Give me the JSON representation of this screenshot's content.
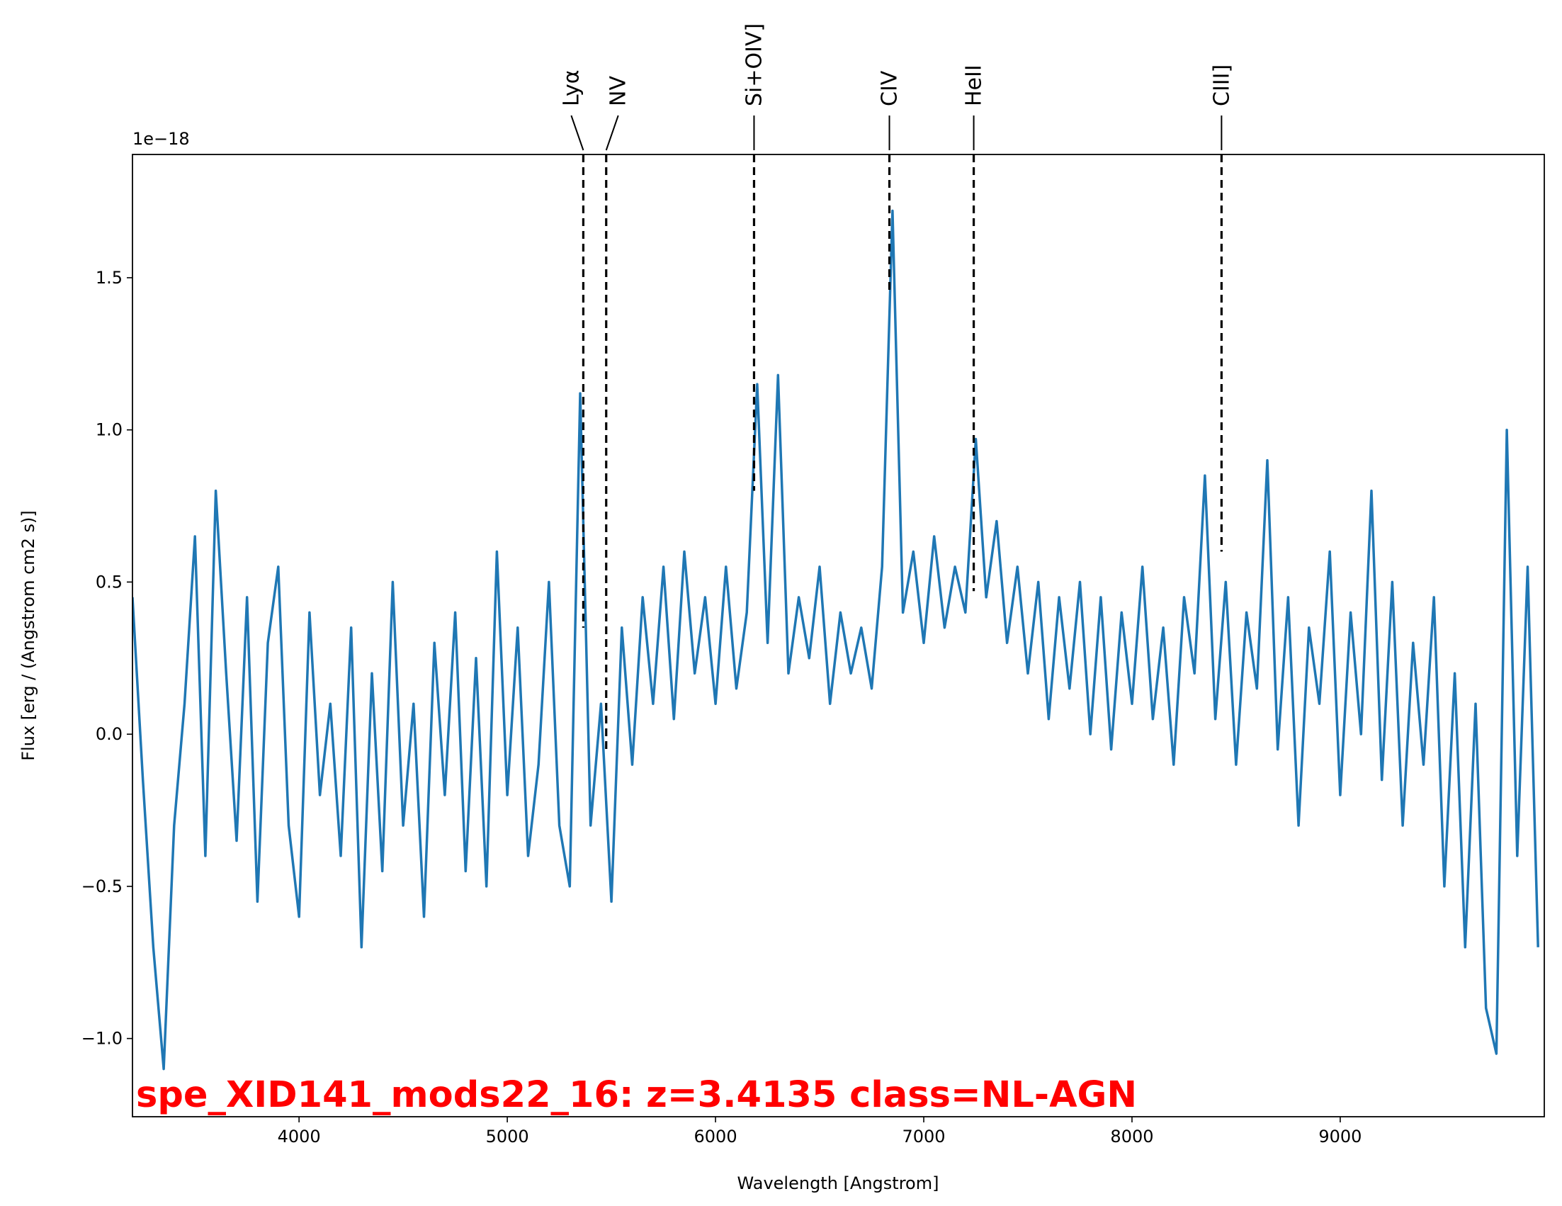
{
  "chart_data": {
    "type": "line",
    "xlabel": "Wavelength [Angstrom]",
    "ylabel": "Flux [erg / (Angstrom cm2 s)]",
    "y_offset_label": "1e−18",
    "annotation": "spe_XID141_mods22_16: z=3.4135 class=NL-AGN",
    "color": "#1f77b4",
    "x": [
      3200,
      3250,
      3300,
      3350,
      3400,
      3450,
      3500,
      3550,
      3600,
      3650,
      3700,
      3750,
      3800,
      3850,
      3900,
      3950,
      4000,
      4050,
      4100,
      4150,
      4200,
      4250,
      4300,
      4350,
      4400,
      4450,
      4500,
      4550,
      4600,
      4650,
      4700,
      4750,
      4800,
      4850,
      4900,
      4950,
      5000,
      5050,
      5100,
      5150,
      5200,
      5250,
      5300,
      5350,
      5400,
      5450,
      5500,
      5550,
      5600,
      5650,
      5700,
      5750,
      5800,
      5850,
      5900,
      5950,
      6000,
      6050,
      6100,
      6150,
      6200,
      6250,
      6300,
      6350,
      6400,
      6450,
      6500,
      6550,
      6600,
      6650,
      6700,
      6750,
      6800,
      6850,
      6900,
      6950,
      7000,
      7050,
      7100,
      7150,
      7200,
      7250,
      7300,
      7350,
      7400,
      7450,
      7500,
      7550,
      7600,
      7650,
      7700,
      7750,
      7800,
      7850,
      7900,
      7950,
      8000,
      8050,
      8100,
      8150,
      8200,
      8250,
      8300,
      8350,
      8400,
      8450,
      8500,
      8550,
      8600,
      8650,
      8700,
      8750,
      8800,
      8850,
      8900,
      8950,
      9000,
      9050,
      9100,
      9150,
      9200,
      9250,
      9300,
      9350,
      9400,
      9450,
      9500,
      9550,
      9600,
      9650,
      9700,
      9750,
      9800,
      9850,
      9900,
      9950
    ],
    "values": [
      0.45,
      -0.15,
      -0.7,
      -1.1,
      -0.3,
      0.1,
      0.65,
      -0.4,
      0.8,
      0.2,
      -0.35,
      0.45,
      -0.55,
      0.3,
      0.55,
      -0.3,
      -0.6,
      0.4,
      -0.2,
      0.1,
      -0.4,
      0.35,
      -0.7,
      0.2,
      -0.45,
      0.5,
      -0.3,
      0.1,
      -0.6,
      0.3,
      -0.2,
      0.4,
      -0.45,
      0.25,
      -0.5,
      0.6,
      -0.2,
      0.35,
      -0.4,
      -0.1,
      0.5,
      -0.3,
      -0.5,
      1.12,
      -0.3,
      0.1,
      -0.55,
      0.35,
      -0.1,
      0.45,
      0.1,
      0.55,
      0.05,
      0.6,
      0.2,
      0.45,
      0.1,
      0.55,
      0.15,
      0.4,
      1.15,
      0.3,
      1.18,
      0.2,
      0.45,
      0.25,
      0.55,
      0.1,
      0.4,
      0.2,
      0.35,
      0.15,
      0.55,
      1.72,
      0.4,
      0.6,
      0.3,
      0.65,
      0.35,
      0.55,
      0.4,
      0.97,
      0.45,
      0.7,
      0.3,
      0.55,
      0.2,
      0.5,
      0.05,
      0.45,
      0.15,
      0.5,
      0.0,
      0.45,
      -0.05,
      0.4,
      0.1,
      0.55,
      0.05,
      0.35,
      -0.1,
      0.45,
      0.2,
      0.85,
      0.05,
      0.5,
      -0.1,
      0.4,
      0.15,
      0.9,
      -0.05,
      0.45,
      -0.3,
      0.35,
      0.1,
      0.6,
      -0.2,
      0.4,
      0.0,
      0.8,
      -0.15,
      0.5,
      -0.3,
      0.3,
      -0.1,
      0.45,
      -0.5,
      0.2,
      -0.7,
      0.1,
      -0.9,
      -1.05,
      1.0,
      -0.4,
      0.55,
      -0.7
    ],
    "lines": [
      {
        "label": "Lyα",
        "x": 5365,
        "ymin": 0.35
      },
      {
        "label": "NV",
        "x": 5475,
        "ymin": -0.05
      },
      {
        "label": "Si+OIV]",
        "x": 6185,
        "ymin": 0.8
      },
      {
        "label": "CIV",
        "x": 6835,
        "ymin": 1.45
      },
      {
        "label": "HeII",
        "x": 7240,
        "ymin": 0.47
      },
      {
        "label": "CIII]",
        "x": 8430,
        "ymin": 0.6
      }
    ],
    "xlim": [
      3200,
      9980
    ],
    "ylim": [
      -1.257,
      1.905
    ],
    "xticks": [
      4000,
      5000,
      6000,
      7000,
      8000,
      9000
    ],
    "yticks": [
      {
        "value": -1,
        "label": "−1.0"
      },
      {
        "value": -0.5,
        "label": "−0.5"
      },
      {
        "value": 0,
        "label": "0.0"
      },
      0.5,
      {
        "value": 1,
        "label": "1.0"
      },
      1.5
    ]
  }
}
